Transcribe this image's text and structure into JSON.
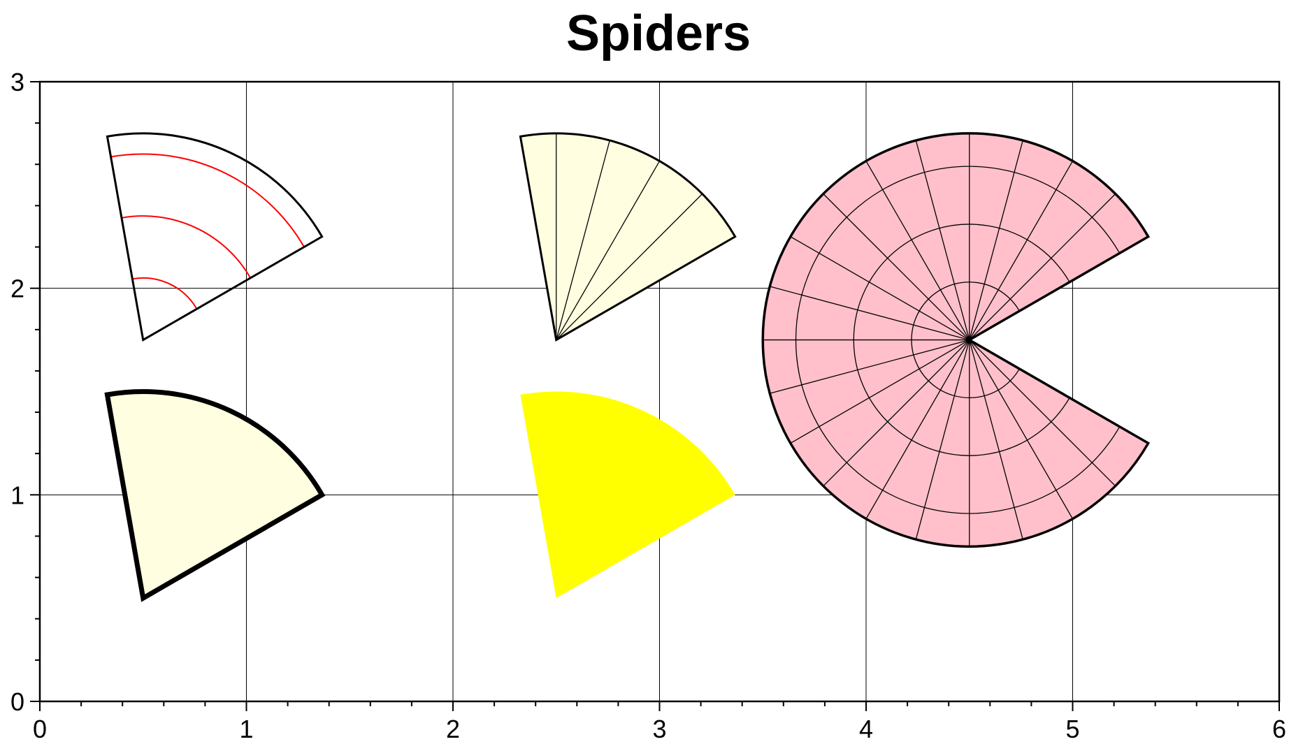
{
  "title": "Spiders",
  "axes": {
    "xlim": [
      0,
      6
    ],
    "ylim": [
      0,
      3
    ],
    "x_ticks": [
      "0",
      "1",
      "2",
      "3",
      "4",
      "5",
      "6"
    ],
    "y_ticks": [
      "0",
      "1",
      "2",
      "3"
    ],
    "grid": true,
    "minor_x_step": 0.2,
    "minor_y_step": 0.2
  },
  "colors": {
    "pale_yellow": "#fffee0",
    "yellow": "#ffff00",
    "pink": "#ffc0cb",
    "red": "#ff0000",
    "black": "#000000"
  },
  "wedges": [
    {
      "id": "wedge-radial-rings",
      "center": [
        0.5,
        1.75
      ],
      "radius": 1.0,
      "start_deg": 30,
      "end_deg": 100,
      "fill": "none",
      "edge": "#000000",
      "rings": [
        0.3,
        0.6,
        0.9
      ],
      "ring_color": "#ff0000",
      "spokes": []
    },
    {
      "id": "wedge-spokes",
      "center": [
        2.5,
        1.75
      ],
      "radius": 1.0,
      "start_deg": 30,
      "end_deg": 100,
      "fill": "#fffee0",
      "edge": "#000000",
      "rings": [],
      "spokes": [
        45,
        60,
        75,
        90
      ]
    },
    {
      "id": "wedge-thick-outline",
      "center": [
        0.5,
        0.5
      ],
      "radius": 1.0,
      "start_deg": 30,
      "end_deg": 100,
      "fill": "#fffee0",
      "edge": "#000000",
      "thick": true,
      "rings": [],
      "spokes": []
    },
    {
      "id": "wedge-solid-yellow",
      "center": [
        2.5,
        0.5
      ],
      "radius": 1.0,
      "start_deg": 30,
      "end_deg": 100,
      "fill": "#ffff00",
      "edge": "none",
      "rings": [],
      "spokes": []
    },
    {
      "id": "wedge-pink-web",
      "center": [
        4.5,
        1.75
      ],
      "radius": 1.0,
      "start_deg": 30,
      "end_deg": 330,
      "fill": "#ffc0cb",
      "edge": "#000000",
      "rings": [
        0.28,
        0.56,
        0.84
      ],
      "ring_color": "#000000",
      "spokes": [
        45,
        60,
        75,
        90,
        105,
        120,
        135,
        150,
        165,
        180,
        195,
        210,
        225,
        240,
        255,
        270,
        285,
        300,
        315
      ]
    }
  ]
}
